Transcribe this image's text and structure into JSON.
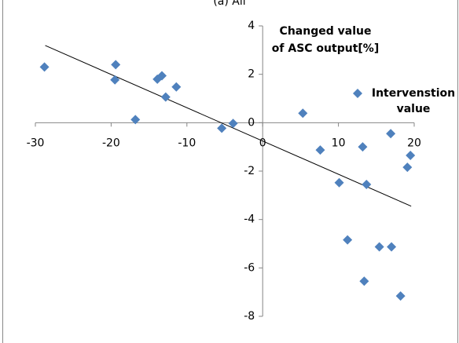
{
  "chart_data": {
    "type": "scatter",
    "title": "(a) All",
    "y_label": [
      "Changed value",
      "of ASC output[%]"
    ],
    "series": [
      {
        "name": "Intervenstion value",
        "color": "#4f81bd",
        "x": [
          -28.8,
          -19.4,
          -19.5,
          -16.8,
          -13.9,
          -13.3,
          -12.8,
          -11.4,
          -5.4,
          -3.9,
          5.3,
          7.6,
          10.1,
          11.2,
          13.2,
          13.7,
          13.4,
          15.4,
          16.9,
          17.0,
          18.2,
          19.1,
          19.5
        ],
        "values": [
          2.3,
          2.4,
          1.77,
          0.13,
          1.8,
          1.94,
          1.06,
          1.48,
          -0.23,
          -0.03,
          0.39,
          -1.13,
          -2.48,
          -4.84,
          -1.0,
          -2.55,
          -6.55,
          -5.13,
          -0.45,
          -5.13,
          -7.16,
          -1.84,
          -1.35
        ]
      }
    ],
    "trendline": {
      "x": [
        -28.7,
        19.6
      ],
      "y": [
        3.19,
        -3.45
      ]
    },
    "xlim": [
      -30,
      20
    ],
    "xticks": [
      -30,
      -20,
      -10,
      0,
      10,
      20
    ],
    "ylim": [
      -8,
      4
    ],
    "yticks": [
      -8,
      -6,
      -4,
      -2,
      0,
      2,
      4
    ]
  }
}
